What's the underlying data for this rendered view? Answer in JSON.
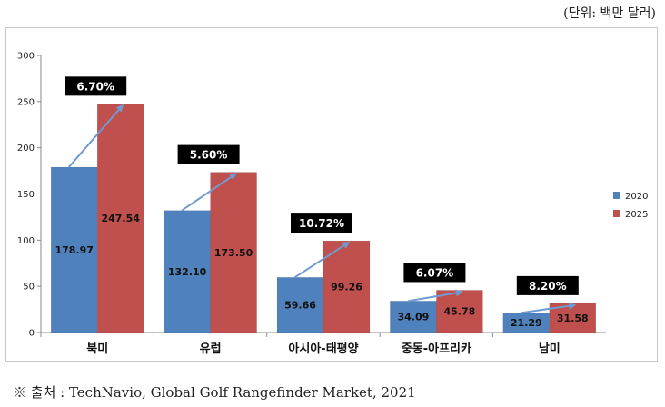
{
  "unit_note": "(단위: 백만 달러)",
  "source_note": "※ 출처 : TechNavio, Global Golf Rangefinder Market, 2021",
  "chart_data": {
    "type": "bar",
    "title": "",
    "xlabel": "",
    "ylabel": "",
    "ylim": [
      0,
      300
    ],
    "yticks": [
      "0",
      "50",
      "100",
      "150",
      "200",
      "250",
      "300"
    ],
    "categories": [
      "북미",
      "유럽",
      "아시아-태평양",
      "중동-아프리카",
      "남미"
    ],
    "series": [
      {
        "name": "2020",
        "color": "#4f81bd",
        "values": [
          178.97,
          132.1,
          59.66,
          34.09,
          21.29
        ],
        "labels": [
          "178.97",
          "132.10",
          "59.66",
          "34.09",
          "21.29"
        ]
      },
      {
        "name": "2025",
        "color": "#c0504d",
        "values": [
          247.54,
          173.5,
          99.26,
          45.78,
          31.58
        ],
        "labels": [
          "247.54",
          "173.50",
          "99.26",
          "45.78",
          "31.58"
        ]
      }
    ],
    "growth_rates": [
      "6.70%",
      "5.60%",
      "10.72%",
      "6.07%",
      "8.20%"
    ],
    "arrow_color": "#6f9bd1",
    "legend_position": "right"
  }
}
